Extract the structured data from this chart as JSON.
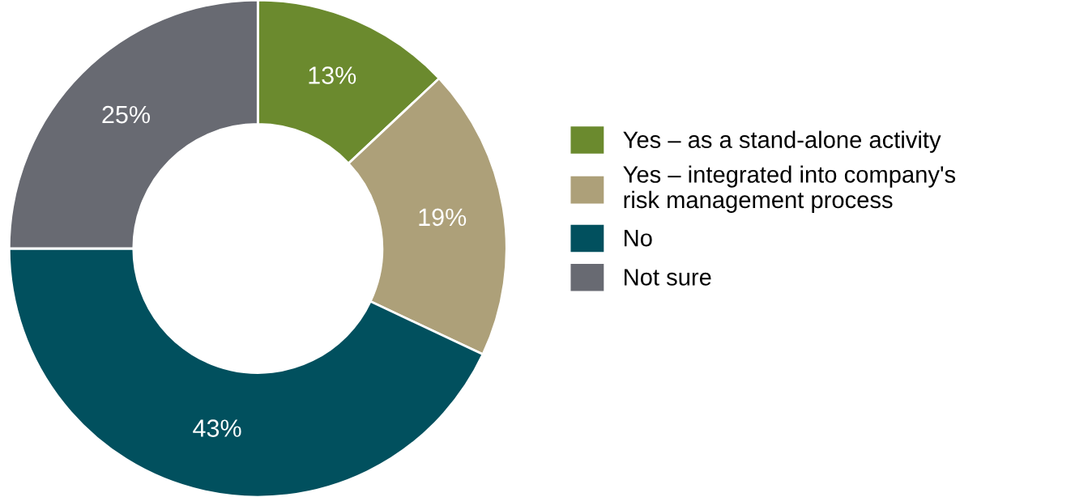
{
  "chart_data": {
    "type": "donut",
    "categories": [
      "Yes – as a stand-alone activity",
      "Yes – integrated into company's\nrisk management process",
      "No",
      "Not sure"
    ],
    "values": [
      13,
      19,
      43,
      25
    ],
    "colors": [
      "#6b8a2e",
      "#ada079",
      "#01505e",
      "#686a72"
    ],
    "value_labels": [
      "13%",
      "19%",
      "43%",
      "25%"
    ],
    "legend": "right"
  }
}
